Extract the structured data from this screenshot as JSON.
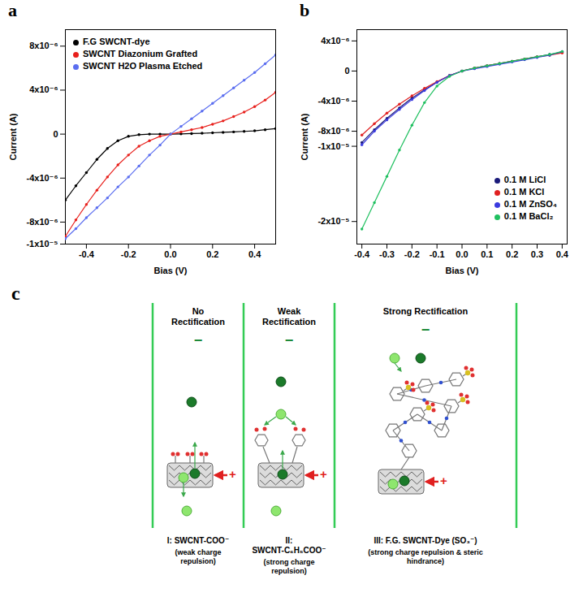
{
  "chart_data": [
    {
      "panel_label": "a",
      "type": "line",
      "xlabel": "Bias (V)",
      "ylabel": "Current (A)",
      "x": [
        -0.5,
        -0.45,
        -0.4,
        -0.35,
        -0.3,
        -0.25,
        -0.2,
        -0.15,
        -0.1,
        -0.05,
        0,
        0.05,
        0.1,
        0.15,
        0.2,
        0.25,
        0.3,
        0.35,
        0.4,
        0.45,
        0.5
      ],
      "xlim": [
        -0.5,
        0.5
      ],
      "xticks": [
        -0.4,
        -0.2,
        {
          "value": 0,
          "label": "0.0"
        },
        0.2,
        0.4
      ],
      "ylim": [
        -1e-05,
        9.5e-06
      ],
      "yticks": [
        {
          "value": -1e-05,
          "label": "-1x10⁻⁵"
        },
        {
          "value": -8e-06,
          "label": "-8x10⁻⁶"
        },
        {
          "value": -4e-06,
          "label": "-4x10⁻⁶"
        },
        0,
        {
          "value": 4e-06,
          "label": "4x10⁻⁶"
        },
        {
          "value": 8e-06,
          "label": "8x10⁻⁶"
        }
      ],
      "grid": false,
      "legend": "top left",
      "marker": "circle",
      "series": [
        {
          "name": "F.G SWCNT-dye",
          "color": "#000000",
          "values": [
            -6e-06,
            -4.7e-06,
            -3.5e-06,
            -2.3e-06,
            -1.3e-06,
            -6e-07,
            -2e-07,
            -5e-08,
            0,
            0,
            0,
            2e-08,
            5e-08,
            8e-08,
            1.2e-07,
            1.6e-07,
            2e-07,
            2.5e-07,
            3e-07,
            4e-07,
            5e-07
          ]
        },
        {
          "name": "SWCNT Diazonium Grafted",
          "color": "#e8201c",
          "values": [
            -9.3e-06,
            -7.8e-06,
            -6.4e-06,
            -5.1e-06,
            -3.9e-06,
            -2.8e-06,
            -1.9e-06,
            -1.1e-06,
            -6e-07,
            -2e-07,
            0,
            2e-07,
            4e-07,
            6e-07,
            9e-07,
            1.2e-06,
            1.6e-06,
            2e-06,
            2.5e-06,
            3.1e-06,
            3.8e-06
          ]
        },
        {
          "name": "SWCNT H2O Plasma Etched",
          "color": "#5b6ef0",
          "values": [
            -9.5e-06,
            -8.6e-06,
            -7.6e-06,
            -6.7e-06,
            -5.8e-06,
            -4.8e-06,
            -3.9e-06,
            -2.9e-06,
            -1.9e-06,
            -1e-06,
            0,
            7e-07,
            1.4e-06,
            2.1e-06,
            2.8e-06,
            3.5e-06,
            4.2e-06,
            4.9e-06,
            5.6e-06,
            6.4e-06,
            7.2e-06
          ]
        }
      ]
    },
    {
      "panel_label": "b",
      "type": "line",
      "xlabel": "Bias (V)",
      "ylabel": "Current (A)",
      "x": [
        -0.4,
        -0.35,
        -0.3,
        -0.25,
        -0.2,
        -0.15,
        -0.1,
        -0.05,
        0,
        0.05,
        0.1,
        0.15,
        0.2,
        0.25,
        0.3,
        0.35,
        0.4
      ],
      "xlim": [
        -0.42,
        0.42
      ],
      "xticks": [
        -0.4,
        -0.3,
        -0.2,
        -0.1,
        {
          "value": 0,
          "label": "0.0"
        },
        0.1,
        0.2,
        0.3,
        0.4
      ],
      "ylim": [
        -2.3e-05,
        5.5e-06
      ],
      "yticks": [
        {
          "value": -2e-05,
          "label": "-2x10⁻⁵"
        },
        {
          "value": -1e-05,
          "label": "-1x10⁻⁵"
        },
        {
          "value": -8e-06,
          "label": "-8x10⁻⁶"
        },
        {
          "value": -4e-06,
          "label": "-4x10⁻⁶"
        },
        0,
        {
          "value": 4e-06,
          "label": "4x10⁻⁶"
        }
      ],
      "grid": false,
      "legend": "bottom right",
      "marker": "circle",
      "series": [
        {
          "name": "0.1 M LiCl",
          "color": "#1a1a7a",
          "values": [
            -9.5e-06,
            -7.8e-06,
            -6.3e-06,
            -4.9e-06,
            -3.6e-06,
            -2.5e-06,
            -1.5e-06,
            -6e-07,
            0,
            4e-07,
            7e-07,
            1e-06,
            1.3e-06,
            1.6e-06,
            1.9e-06,
            2.2e-06,
            2.5e-06
          ]
        },
        {
          "name": "0.1 M KCl",
          "color": "#e02020",
          "values": [
            -8.5e-06,
            -7e-06,
            -5.6e-06,
            -4.4e-06,
            -3.3e-06,
            -2.3e-06,
            -1.4e-06,
            -6e-07,
            0,
            4e-07,
            7e-07,
            1e-06,
            1.3e-06,
            1.6e-06,
            1.9e-06,
            2.1e-06,
            2.4e-06
          ]
        },
        {
          "name": "0.1 M ZnSO₄",
          "color": "#3a3adf",
          "values": [
            -9.8e-06,
            -8e-06,
            -6.5e-06,
            -5.1e-06,
            -3.8e-06,
            -2.6e-06,
            -1.5e-06,
            -6e-07,
            0,
            3e-07,
            6e-07,
            9e-07,
            1.2e-06,
            1.5e-06,
            1.8e-06,
            2.1e-06,
            2.6e-06
          ]
        },
        {
          "name": "0.1 M BaCl₂",
          "color": "#20c060",
          "values": [
            -2.1e-05,
            -1.75e-05,
            -1.4e-05,
            -1.05e-05,
            -7.2e-06,
            -4.2e-06,
            -2e-06,
            -7e-07,
            0,
            4e-07,
            7e-07,
            1e-06,
            1.3e-06,
            1.6e-06,
            1.9e-06,
            2.2e-06,
            2.6e-06
          ]
        }
      ]
    }
  ],
  "diagram": {
    "panel_label": "c",
    "negative_terminal": "−",
    "positive_terminal": "+",
    "columns": [
      {
        "heading": "No Rectification",
        "name": "I: SWCNT-COO⁻",
        "description": "(weak charge repulsion)"
      },
      {
        "heading": "Weak Rectification",
        "name": "II: SWCNT-C₆H₅COO⁻",
        "description": "(strong charge repulsion)"
      },
      {
        "heading": "Strong Rectification",
        "name": "III: F.G. SWCNT-Dye (SO₃⁻)",
        "description": "(strong charge repulsion & steric hindrance)"
      }
    ]
  }
}
